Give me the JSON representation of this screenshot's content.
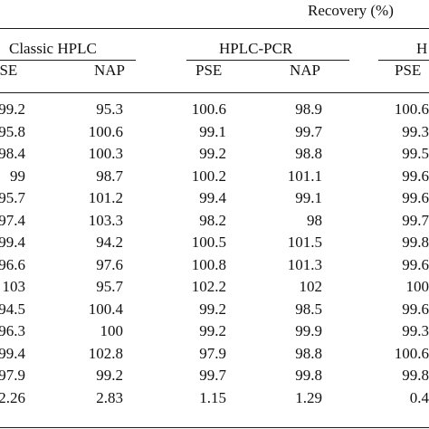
{
  "header": {
    "group_title": "Recovery (%)",
    "methods": [
      "Classic HPLC",
      "HPLC-PCR",
      "H"
    ],
    "columns": [
      "PSE",
      "NAP",
      "PSE",
      "NAP",
      "PSE"
    ]
  },
  "rows": [
    [
      "99.2",
      "95.3",
      "100.6",
      "98.9",
      "100.6"
    ],
    [
      "95.8",
      "100.6",
      "99.1",
      "99.7",
      "99.3"
    ],
    [
      "98.4",
      "100.3",
      "99.2",
      "98.8",
      "99.5"
    ],
    [
      "99",
      "98.7",
      "100.2",
      "101.1",
      "99.6"
    ],
    [
      "95.7",
      "101.2",
      "99.4",
      "99.1",
      "99.6"
    ],
    [
      "97.4",
      "103.3",
      "98.2",
      "98",
      "99.7"
    ],
    [
      "99.4",
      "94.2",
      "100.5",
      "101.5",
      "99.8"
    ],
    [
      "96.6",
      "97.6",
      "100.8",
      "101.3",
      "99.6"
    ],
    [
      "103",
      "95.7",
      "102.2",
      "102",
      "100"
    ],
    [
      "94.5",
      "100.4",
      "99.2",
      "98.5",
      "99.6"
    ],
    [
      "96.3",
      "100",
      "99.2",
      "99.9",
      "99.3"
    ],
    [
      "99.4",
      "102.8",
      "97.9",
      "98.8",
      "100.6"
    ],
    [
      "97.9",
      "99.2",
      "99.7",
      "99.8",
      "99.8"
    ],
    [
      "2.26",
      "2.83",
      "1.15",
      "1.29",
      "0.4"
    ]
  ]
}
